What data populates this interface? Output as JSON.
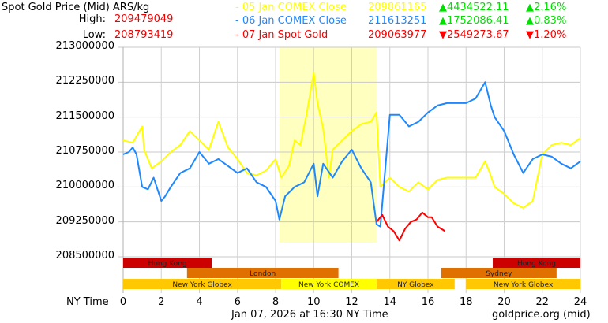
{
  "header": {
    "title": "Spot Gold Price (Mid) ARS/kg",
    "high_label": "High:",
    "high_value": "209479049",
    "low_label": "Low:",
    "low_value": "208793419"
  },
  "legend": [
    {
      "label": "- 05 Jan COMEX Close",
      "value": "209861165",
      "change": "▲4434522.11",
      "pct": "▲2.16%",
      "color": "#ffff00",
      "change_color": "#00e000"
    },
    {
      "label": "- 06 Jan COMEX Close",
      "value": "211613251",
      "change": "▲1752086.41",
      "pct": "▲0.83%",
      "color": "#1e88ff",
      "change_color": "#00e000"
    },
    {
      "label": "- 07 Jan Spot Gold",
      "value": "209063977",
      "change": "▼2549273.67",
      "pct": "▼1.20%",
      "color": "#ff0000",
      "change_color": "#ff0000"
    }
  ],
  "footer": {
    "x_axis_label": "NY Time",
    "timestamp": "Jan 07, 2026 at 16:30 NY Time",
    "source": "goldprice.org (mid)"
  },
  "sessions": [
    {
      "name": "Hong Kong",
      "row": 0,
      "start": 0,
      "end": 4.65,
      "color": "#cc0000"
    },
    {
      "name": "Hong Kong",
      "row": 0,
      "start": 19.4,
      "end": 24,
      "color": "#cc0000"
    },
    {
      "name": "London",
      "row": 1,
      "start": 3.35,
      "end": 11.3,
      "color": "#e07000"
    },
    {
      "name": "Sydney",
      "row": 1,
      "start": 16.7,
      "end": 22.75,
      "color": "#e07000"
    },
    {
      "name": "New York Globex",
      "row": 2,
      "start": 0,
      "end": 8.3,
      "color": "#ffc800"
    },
    {
      "name": "New York COMEX",
      "row": 2,
      "start": 8.3,
      "end": 13.3,
      "color": "#ffff00"
    },
    {
      "name": "NY Globex",
      "row": 2,
      "start": 13.3,
      "end": 17.4,
      "color": "#ffc800"
    },
    {
      "name": "New York Globex",
      "row": 2,
      "start": 18,
      "end": 24,
      "color": "#ffc800"
    }
  ],
  "chart_data": {
    "type": "line",
    "title": "Spot Gold Price (Mid) ARS/kg",
    "xlabel": "NY Time",
    "ylabel": "ARS/kg",
    "xlim": [
      0,
      24
    ],
    "ylim": [
      208500000,
      213000000
    ],
    "x_ticks": [
      "0",
      "2",
      "4",
      "6",
      "8",
      "10",
      "12",
      "14",
      "16",
      "18",
      "20",
      "22",
      "24"
    ],
    "y_ticks": [
      "213000000",
      "212250000",
      "211500000",
      "210750000",
      "210000000",
      "209250000",
      "208500000"
    ],
    "highlight_region": {
      "start": 8.2,
      "end": 13.3,
      "color": "#ffffc0"
    },
    "grid": true,
    "series": [
      {
        "name": "05 Jan COMEX Close",
        "color": "#ffff00",
        "x": [
          0,
          0.5,
          1,
          1.1,
          1.5,
          2,
          2.5,
          3,
          3.5,
          4,
          4.5,
          5,
          5.5,
          6,
          6.5,
          7,
          7.5,
          8,
          8.3,
          8.7,
          9,
          9.3,
          9.6,
          10,
          10.2,
          10.5,
          10.8,
          11,
          11.5,
          12,
          12.5,
          13,
          13.3,
          13.5,
          14,
          14.5,
          15,
          15.5,
          16,
          16.5,
          17,
          17.5,
          18,
          18.5,
          19,
          19.2,
          19.5,
          20,
          20.5,
          21,
          21.5,
          22,
          22.5,
          23,
          23.5,
          24
        ],
        "y": [
          211000000,
          210950000,
          211300000,
          210800000,
          210400000,
          210550000,
          210750000,
          210900000,
          211200000,
          211000000,
          210800000,
          211400000,
          210850000,
          210600000,
          210300000,
          210250000,
          210350000,
          210600000,
          210200000,
          210450000,
          211000000,
          210900000,
          211500000,
          212450000,
          211800000,
          211250000,
          210200000,
          210800000,
          211000000,
          211200000,
          211350000,
          211400000,
          211600000,
          210000000,
          210200000,
          210000000,
          209900000,
          210100000,
          209950000,
          210150000,
          210200000,
          210200000,
          210200000,
          210200000,
          210550000,
          210350000,
          210000000,
          209850000,
          209650000,
          209550000,
          209700000,
          210700000,
          210900000,
          210950000,
          210900000,
          211050000
        ]
      },
      {
        "name": "06 Jan COMEX Close",
        "color": "#1e88ff",
        "x": [
          0,
          0.3,
          0.5,
          0.7,
          1,
          1.3,
          1.6,
          2,
          2.2,
          2.5,
          3,
          3.5,
          4,
          4.5,
          5,
          5.5,
          6,
          6.5,
          7,
          7.5,
          8,
          8.2,
          8.5,
          9,
          9.5,
          10,
          10.2,
          10.5,
          11,
          11.5,
          12,
          12.5,
          13,
          13.3,
          13.5,
          14,
          14.5,
          15,
          15.5,
          16,
          16.5,
          17,
          17.5,
          18,
          18.5,
          19,
          19.3,
          19.5,
          20,
          20.5,
          21,
          21.5,
          22,
          22.5,
          23,
          23.5,
          24
        ],
        "y": [
          210700000,
          210750000,
          210850000,
          210700000,
          210000000,
          209950000,
          210200000,
          209700000,
          209800000,
          210000000,
          210300000,
          210400000,
          210750000,
          210500000,
          210600000,
          210450000,
          210300000,
          210400000,
          210100000,
          210000000,
          209700000,
          209300000,
          209800000,
          210000000,
          210100000,
          210500000,
          209800000,
          210500000,
          210200000,
          210550000,
          210800000,
          210400000,
          210100000,
          209200000,
          209150000,
          211550000,
          211550000,
          211300000,
          211400000,
          211600000,
          211750000,
          211800000,
          211800000,
          211800000,
          211900000,
          212250000,
          211750000,
          211500000,
          211200000,
          210700000,
          210300000,
          210600000,
          210700000,
          210650000,
          210500000,
          210400000,
          210550000
        ]
      },
      {
        "name": "07 Jan Spot Gold",
        "color": "#ff0000",
        "x": [
          13.3,
          13.6,
          13.9,
          14.2,
          14.5,
          14.8,
          15.1,
          15.4,
          15.7,
          16,
          16.2,
          16.5,
          16.7,
          16.9
        ],
        "y": [
          209250000,
          209400000,
          209150000,
          209050000,
          208850000,
          209100000,
          209250000,
          209300000,
          209450000,
          209350000,
          209350000,
          209150000,
          209100000,
          209050000
        ]
      }
    ]
  }
}
